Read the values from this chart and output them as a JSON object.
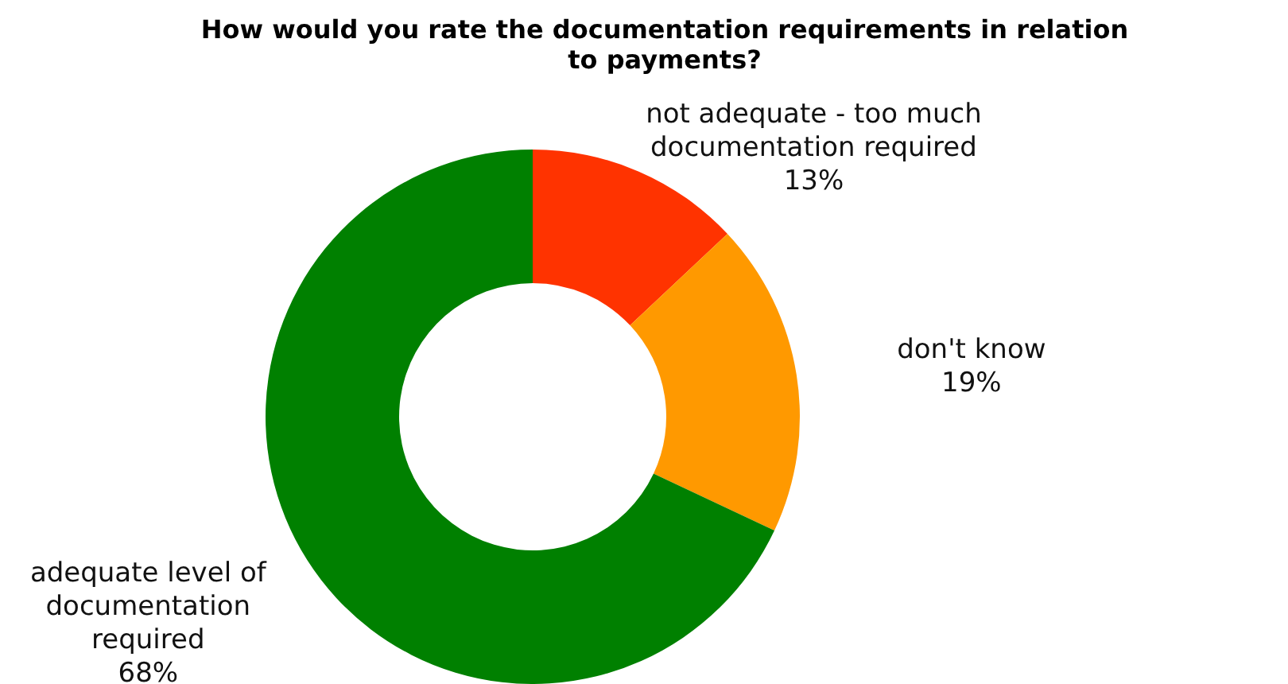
{
  "chart_data": {
    "type": "donut",
    "title": "How would you rate the documentation requirements in relation to payments?",
    "categories": [
      "not adequate - too much documentation required",
      "don't know",
      "adequate level of documentation required"
    ],
    "values": [
      13,
      19,
      68
    ],
    "colors": [
      "#ff3300",
      "#ff9900",
      "#008000"
    ],
    "value_labels": [
      "13%",
      "19%",
      "68%"
    ]
  }
}
